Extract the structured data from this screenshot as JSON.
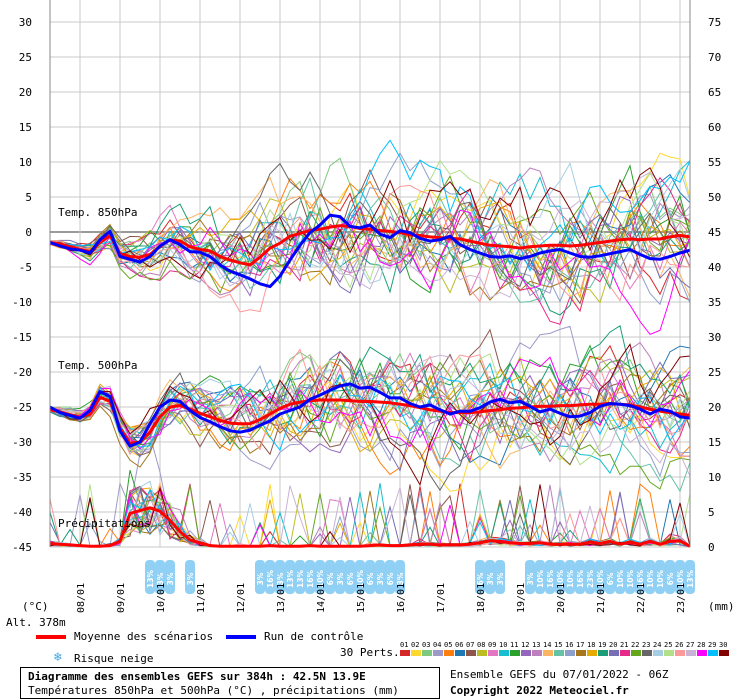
{
  "legend": {
    "mean_label": "Moyenne des scénarios",
    "control_label": "Run de contrôle",
    "snow_label": "Risque neige",
    "members_label": "30 Perts.",
    "member_numbers": [
      "01",
      "02",
      "03",
      "04",
      "05",
      "06",
      "07",
      "08",
      "09",
      "10",
      "11",
      "12",
      "13",
      "14",
      "15",
      "16",
      "17",
      "18",
      "19",
      "20",
      "21",
      "22",
      "23",
      "24",
      "25",
      "26",
      "27",
      "28",
      "29",
      "30"
    ],
    "member_colors": [
      "#d62728",
      "#ffd92f",
      "#7fc97f",
      "#9e9ac8",
      "#ff7f0e",
      "#1f77b4",
      "#8c564b",
      "#bcbd22",
      "#e377c2",
      "#17becf",
      "#2ca02c",
      "#9467bd",
      "#bc80bd",
      "#fdb462",
      "#66c2a5",
      "#8da0cb",
      "#a6761d",
      "#e6ab02",
      "#1b9e77",
      "#7570b3",
      "#e7298a",
      "#66a61e",
      "#666666",
      "#a6cee3",
      "#b2df8a",
      "#fb9a99",
      "#cab2d6",
      "#ff00ff",
      "#00bfff",
      "#800000"
    ]
  },
  "footer": {
    "title": "Diagramme des ensembles GEFS sur 384h : 42.5N 13.9E",
    "subtitle": "Températures 850hPa et 500hPa (°C) , précipitations (mm)",
    "run_info": "Ensemble GEFS du 07/01/2022 - 06Z",
    "copyright": "Copyright 2022 Meteociel.fr"
  },
  "chart_data": {
    "type": "line",
    "left_axis": {
      "unit_label": "(°C)",
      "ticks": [
        "30",
        "25",
        "20",
        "15",
        "10",
        "5",
        "0",
        "-5",
        "-10",
        "-15",
        "-20",
        "-25",
        "-30",
        "-35",
        "-40",
        "-45"
      ],
      "ylim": [
        -45,
        30
      ]
    },
    "right_axis": {
      "unit_label": "(mm)",
      "ticks": [
        "75",
        "70",
        "65",
        "60",
        "55",
        "50",
        "45",
        "40",
        "35",
        "30",
        "25",
        "20",
        "15",
        "10",
        "5",
        "0"
      ],
      "ylim": [
        0,
        75
      ]
    },
    "altitude_label": "Alt. 378m",
    "x_ticks": [
      "08/01",
      "09/01",
      "10/01",
      "11/01",
      "12/01",
      "13/01",
      "14/01",
      "15/01",
      "16/01",
      "17/01",
      "18/01",
      "19/01",
      "20/01",
      "21/01",
      "22/01",
      "23/01"
    ],
    "panel_labels": [
      "Temp. 850hPa",
      "Temp. 500hPa",
      "Précipitations"
    ],
    "x": [
      0,
      6,
      12,
      18,
      24,
      30,
      36,
      42,
      48,
      54,
      60,
      66,
      72,
      78,
      84,
      90,
      96,
      102,
      108,
      114,
      120,
      126,
      132,
      138,
      144,
      150,
      156,
      162,
      168,
      174,
      180,
      186,
      192,
      198,
      204,
      210,
      216,
      222,
      228,
      234,
      240,
      246,
      252,
      258,
      264,
      270,
      276,
      282,
      288,
      294,
      300,
      306,
      312,
      318,
      324,
      330,
      336,
      342,
      348,
      354,
      360,
      366,
      372,
      378,
      384
    ],
    "x_unit": "hours since 07/01/2022 06Z",
    "series": [
      {
        "name": "Moyenne des scénarios",
        "group": "Temp. 850hPa",
        "color": "#ff0000",
        "values": [
          -1.5,
          -1.7,
          -2.1,
          -2.5,
          -2.8,
          -1.5,
          -0.5,
          -3.1,
          -3.5,
          -3.6,
          -3.2,
          -2.1,
          -1.1,
          -1.3,
          -2.1,
          -2.5,
          -2.7,
          -3.5,
          -4,
          -4.4,
          -4.7,
          -3.6,
          -2.3,
          -1.6,
          -0.6,
          -0.2,
          0.2,
          0.4,
          0.7,
          0.9,
          0.8,
          0.5,
          0.4,
          0.2,
          0.1,
          -0.1,
          -0.4,
          -0.5,
          -0.7,
          -0.8,
          -0.9,
          -1,
          -1.3,
          -1.6,
          -1.9,
          -2,
          -2.1,
          -2.3,
          -2.1,
          -2,
          -1.9,
          -1.9,
          -2,
          -1.9,
          -1.7,
          -1.5,
          -1.3,
          -1.1,
          -1,
          -1.1,
          -1,
          -1,
          -0.7,
          -0.5,
          -0.7
        ]
      },
      {
        "name": "Run de contrôle",
        "group": "Temp. 850hPa",
        "color": "#0000ff",
        "values": [
          -1.5,
          -2,
          -2.4,
          -2.6,
          -3,
          -1.1,
          0.1,
          -3.5,
          -3.9,
          -4.3,
          -3.5,
          -2,
          -1.1,
          -1.8,
          -2.8,
          -2.9,
          -3.5,
          -4.7,
          -5.6,
          -6.1,
          -6.7,
          -7.4,
          -7.8,
          -6.3,
          -4,
          -1.9,
          -0.1,
          1,
          2.4,
          2.2,
          0.8,
          0.6,
          1,
          -0.3,
          -0.8,
          0.2,
          -0.1,
          -0.9,
          -1.3,
          -1.1,
          -0.6,
          -1.8,
          -2.5,
          -3,
          -3.5,
          -3.6,
          -3.4,
          -3.8,
          -3.5,
          -3,
          -2.7,
          -2.5,
          -3,
          -3.5,
          -3.6,
          -3.4,
          -3.1,
          -2.8,
          -2.5,
          -3.2,
          -3.8,
          -3.9,
          -3.5,
          -3,
          -2.6
        ]
      },
      {
        "name": "Moyenne des scénarios",
        "group": "Temp. 500hPa",
        "color": "#ff0000",
        "values": [
          -25.4,
          -25.7,
          -26.1,
          -26.5,
          -26,
          -23.6,
          -24.2,
          -28,
          -30.2,
          -30,
          -28.6,
          -26.4,
          -25,
          -24.8,
          -25.3,
          -25.9,
          -26.4,
          -26.9,
          -27.3,
          -27.4,
          -27.4,
          -26.8,
          -26,
          -25.2,
          -24.6,
          -24.3,
          -24.1,
          -24,
          -24,
          -24,
          -24.1,
          -24.2,
          -24.2,
          -24.3,
          -24.4,
          -24.6,
          -24.8,
          -25.1,
          -25.4,
          -25.6,
          -25.8,
          -25.8,
          -25.8,
          -25.7,
          -25.5,
          -25.4,
          -25.2,
          -25.1,
          -25,
          -24.9,
          -24.9,
          -24.8,
          -24.8,
          -24.7,
          -24.6,
          -24.6,
          -24.5,
          -24.6,
          -24.7,
          -25,
          -25.3,
          -25.6,
          -25.8,
          -26,
          -26.2
        ]
      },
      {
        "name": "Run de contrôle",
        "group": "Temp. 500hPa",
        "color": "#0000ff",
        "values": [
          -25,
          -25.8,
          -26.2,
          -26.6,
          -25.5,
          -22.8,
          -23.5,
          -28.4,
          -30.6,
          -30,
          -27.4,
          -25,
          -24,
          -24.2,
          -25.5,
          -26.5,
          -27.1,
          -27.8,
          -28.4,
          -28.6,
          -28.3,
          -27.6,
          -27,
          -26,
          -25.5,
          -25,
          -23.9,
          -23.3,
          -22.6,
          -22,
          -21.7,
          -22.3,
          -22.2,
          -22.9,
          -23.7,
          -23.7,
          -24.5,
          -25,
          -24.7,
          -25.4,
          -26,
          -25.6,
          -25.6,
          -25.1,
          -24.3,
          -23.9,
          -24.4,
          -24.2,
          -24.9,
          -25.7,
          -25.3,
          -25.9,
          -26.4,
          -26.3,
          -25.8,
          -24.9,
          -24.5,
          -24.6,
          -24.8,
          -25.3,
          -26,
          -25.3,
          -25.6,
          -26.4,
          -26.6
        ]
      },
      {
        "name": "Moyenne des scénarios",
        "group": "Précipitations",
        "color": "#ff0000",
        "values": [
          0.5,
          0.4,
          0.3,
          0.2,
          0.1,
          0.1,
          0.2,
          0.8,
          4.8,
          5.2,
          5.6,
          5.1,
          3.8,
          2.2,
          1,
          0.6,
          0.2,
          0.1,
          0.1,
          0.1,
          0.1,
          0.1,
          0.2,
          0.1,
          0.1,
          0.1,
          0.2,
          0.1,
          0.1,
          0.1,
          0.1,
          0.1,
          0.2,
          0.3,
          0.2,
          0.2,
          0.3,
          0.4,
          0.4,
          0.3,
          0.3,
          0.3,
          0.4,
          0.6,
          0.9,
          0.8,
          0.6,
          0.5,
          0.5,
          0.6,
          0.4,
          0.4,
          0.4,
          0.4,
          0.7,
          0.5,
          0.8,
          0.4,
          0.7,
          0.4,
          0.8,
          0.4,
          0.8,
          0.9,
          0.1
        ]
      }
    ],
    "members_count": 30,
    "snow_risk": [
      {
        "time": 60,
        "text": "13%"
      },
      {
        "time": 66,
        "text": "3%"
      },
      {
        "time": 72,
        "text": "3%"
      },
      {
        "time": 84,
        "text": "3%"
      },
      {
        "time": 126,
        "text": "3%"
      },
      {
        "time": 132,
        "text": "16%"
      },
      {
        "time": 138,
        "text": "3%"
      },
      {
        "time": 144,
        "text": "13%"
      },
      {
        "time": 150,
        "text": "13%"
      },
      {
        "time": 156,
        "text": "16%"
      },
      {
        "time": 162,
        "text": "10%"
      },
      {
        "time": 168,
        "text": "6%"
      },
      {
        "time": 174,
        "text": "3%"
      },
      {
        "time": 180,
        "text": "6%"
      },
      {
        "time": 186,
        "text": "10%"
      },
      {
        "time": 192,
        "text": "6%"
      },
      {
        "time": 198,
        "text": "3%"
      },
      {
        "time": 204,
        "text": "6%"
      },
      {
        "time": 210,
        "text": "3%"
      },
      {
        "time": 258,
        "text": "6%"
      },
      {
        "time": 264,
        "text": "3%"
      },
      {
        "time": 270,
        "text": "3%"
      },
      {
        "time": 288,
        "text": "3%"
      },
      {
        "time": 294,
        "text": "10%"
      },
      {
        "time": 300,
        "text": "16%"
      },
      {
        "time": 306,
        "text": "10%"
      },
      {
        "time": 312,
        "text": "10%"
      },
      {
        "time": 318,
        "text": "16%"
      },
      {
        "time": 324,
        "text": "23%"
      },
      {
        "time": 330,
        "text": "10%"
      },
      {
        "time": 336,
        "text": "6%"
      },
      {
        "time": 342,
        "text": "10%"
      },
      {
        "time": 348,
        "text": "10%"
      },
      {
        "time": 354,
        "text": "16%"
      },
      {
        "time": 360,
        "text": "10%"
      },
      {
        "time": 366,
        "text": "10%"
      },
      {
        "time": 372,
        "text": "6%"
      },
      {
        "time": 378,
        "text": "10%"
      },
      {
        "time": 384,
        "text": "13%"
      }
    ],
    "grid": true
  }
}
